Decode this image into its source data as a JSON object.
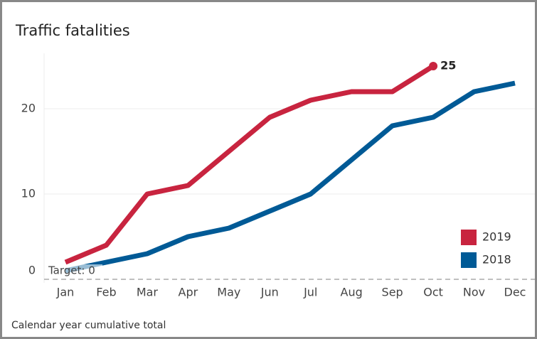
{
  "chart_data": {
    "type": "line",
    "title": "Traffic fatalities",
    "categories": [
      "Jan",
      "Feb",
      "Mar",
      "Apr",
      "May",
      "Jun",
      "Jul",
      "Aug",
      "Sep",
      "Oct",
      "Nov",
      "Dec"
    ],
    "series": [
      {
        "name": "2019",
        "color": "#c8243f",
        "values": [
          2,
          4,
          10,
          11,
          15,
          19,
          21,
          22,
          22,
          25,
          null,
          null
        ]
      },
      {
        "name": "2018",
        "color": "#005a96",
        "values": [
          1,
          2,
          3,
          5,
          6,
          8,
          10,
          14,
          18,
          19,
          22,
          23
        ]
      }
    ],
    "target": {
      "label": "Target: 0",
      "value": 0
    },
    "ylim": [
      -1,
      26.5
    ],
    "yticks": [
      0,
      10,
      20
    ],
    "grid": true,
    "legend": "bottom-right",
    "footnote": "Calendar year cumulative total"
  }
}
